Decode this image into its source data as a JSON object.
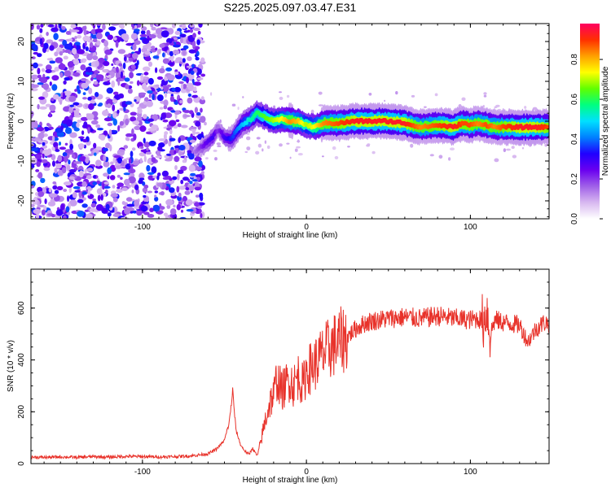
{
  "title": "S225.2025.097.03.47.E31",
  "chart_data": [
    {
      "type": "heatmap",
      "xlabel": "Height of straight line (km)",
      "ylabel": "Frequency (Hz)",
      "xlim": [
        -168,
        148
      ],
      "ylim": [
        -24.5,
        24.5
      ],
      "x_ticks": [
        -100,
        0,
        100
      ],
      "y_ticks": [
        -20,
        -10,
        0,
        10,
        20
      ],
      "colorbar": {
        "label": "Normalized spectral amplitude",
        "range": [
          0,
          0.98
        ],
        "ticks": [
          0.0,
          0.2,
          0.4,
          0.6,
          0.8
        ],
        "tick_labels": [
          "0.0",
          "0.2",
          "0.4",
          "0.6",
          "0.8"
        ],
        "colors": [
          "#ffffff",
          "#d8b8f0",
          "#a060e8",
          "#6a00f0",
          "#2000ff",
          "#0080ff",
          "#00e0ff",
          "#00ff80",
          "#60ff00",
          "#ffff00",
          "#ffa000",
          "#ff3000",
          "#ff0060"
        ]
      },
      "noise_region_x": [
        -168,
        -67
      ],
      "ridge": {
        "x": [
          -68,
          -62,
          -57,
          -54,
          -50,
          -46,
          -40,
          -34,
          -30,
          -25,
          -20,
          -15,
          -10,
          -5,
          0,
          5,
          10,
          20,
          30,
          40,
          50,
          60,
          65,
          70,
          80,
          90,
          95,
          100,
          105,
          110,
          115,
          120,
          130,
          140,
          148
        ],
        "freq": [
          -7.5,
          -6,
          -4,
          -2,
          -4,
          -4.5,
          -1,
          0.5,
          2,
          1,
          0,
          0.5,
          0,
          0,
          -1,
          -1.5,
          -0.5,
          -0.5,
          0,
          0,
          0,
          -0.5,
          -1,
          -1.5,
          -1,
          -1.5,
          -0.5,
          -1,
          -0.5,
          -1,
          -1.5,
          -1.5,
          -1.5,
          -1.5,
          -1.5
        ],
        "amplitude": [
          0.15,
          0.25,
          0.3,
          0.2,
          0.3,
          0.35,
          0.45,
          0.55,
          0.6,
          0.65,
          0.7,
          0.75,
          0.85,
          0.8,
          0.7,
          0.75,
          0.85,
          0.9,
          0.95,
          0.95,
          0.95,
          0.95,
          0.9,
          0.85,
          0.9,
          0.95,
          0.9,
          0.9,
          0.85,
          0.9,
          0.85,
          0.9,
          0.95,
          0.95,
          0.9
        ]
      }
    },
    {
      "type": "line",
      "xlabel": "Height of straight line (km)",
      "ylabel": "SNR (10 * v/v)",
      "xlim": [
        -168,
        148
      ],
      "ylim": [
        0,
        750
      ],
      "x_ticks": [
        -100,
        0,
        100
      ],
      "y_ticks": [
        0,
        200,
        400,
        600
      ],
      "color": "#e8322a",
      "x": [
        -168,
        -160,
        -150,
        -140,
        -130,
        -120,
        -110,
        -100,
        -90,
        -80,
        -70,
        -60,
        -55,
        -50,
        -47,
        -45,
        -43,
        -40,
        -37,
        -35,
        -33,
        -30,
        -28,
        -25,
        -22,
        -20,
        -18,
        -15,
        -12,
        -10,
        -8,
        -5,
        -2,
        0,
        3,
        6,
        10,
        15,
        20,
        25,
        30,
        35,
        40,
        50,
        60,
        70,
        80,
        90,
        100,
        105,
        108,
        110,
        112,
        115,
        120,
        125,
        130,
        135,
        140,
        145,
        148
      ],
      "values": [
        25,
        24,
        26,
        24,
        27,
        25,
        28,
        27,
        26,
        27,
        30,
        38,
        55,
        90,
        160,
        280,
        130,
        70,
        45,
        35,
        60,
        30,
        80,
        170,
        240,
        260,
        330,
        280,
        310,
        330,
        300,
        340,
        300,
        360,
        370,
        390,
        420,
        450,
        470,
        490,
        520,
        540,
        550,
        560,
        565,
        560,
        570,
        560,
        555,
        560,
        545,
        600,
        500,
        555,
        545,
        540,
        535,
        470,
        520,
        545,
        540
      ]
    }
  ]
}
